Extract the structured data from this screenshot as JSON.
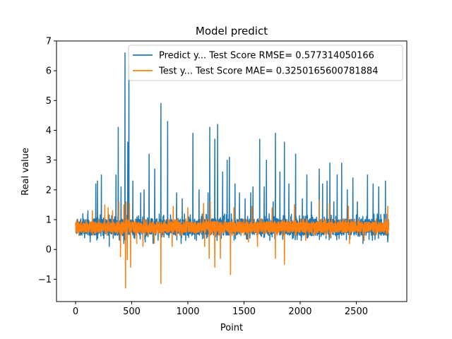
{
  "chart_data": {
    "type": "line",
    "title": "Model predict",
    "xlabel": "Point",
    "ylabel": "Real value",
    "xlim": [
      -170,
      2950
    ],
    "ylim": [
      -1.75,
      7.0
    ],
    "xticks": [
      0,
      500,
      1000,
      1500,
      2000,
      2500
    ],
    "yticks": [
      -1,
      0,
      1,
      2,
      3,
      4,
      5,
      6,
      7
    ],
    "grid": false,
    "legend_position": "top-right",
    "n_points": 2790,
    "series": [
      {
        "name": "Predict y... Test Score RMSE= 0.577314050166",
        "color": "#1f77b4",
        "baseline": 0.75,
        "noise_amplitude": 0.28,
        "spikes": [
          [
            65,
            1.2
          ],
          [
            110,
            1.3
          ],
          [
            180,
            2.2
          ],
          [
            195,
            2.3
          ],
          [
            230,
            2.5
          ],
          [
            300,
            1.9
          ],
          [
            360,
            2.5
          ],
          [
            380,
            4.1
          ],
          [
            405,
            2.1
          ],
          [
            440,
            6.6
          ],
          [
            465,
            3.6
          ],
          [
            475,
            6.2
          ],
          [
            510,
            2.3
          ],
          [
            580,
            1.9
          ],
          [
            610,
            2.0
          ],
          [
            655,
            3.2
          ],
          [
            705,
            2.7
          ],
          [
            760,
            4.9
          ],
          [
            820,
            4.3
          ],
          [
            900,
            1.9
          ],
          [
            950,
            1.7
          ],
          [
            1045,
            3.9
          ],
          [
            1100,
            2.0
          ],
          [
            1140,
            1.3
          ],
          [
            1180,
            1.9
          ],
          [
            1195,
            4.1
          ],
          [
            1240,
            3.7
          ],
          [
            1265,
            4.2
          ],
          [
            1310,
            2.6
          ],
          [
            1350,
            3.0
          ],
          [
            1370,
            3.1
          ],
          [
            1420,
            2.2
          ],
          [
            1460,
            1.9
          ],
          [
            1510,
            1.7
          ],
          [
            1560,
            1.9
          ],
          [
            1580,
            2.1
          ],
          [
            1640,
            3.7
          ],
          [
            1680,
            2.1
          ],
          [
            1700,
            3.0
          ],
          [
            1760,
            1.6
          ],
          [
            1780,
            3.9
          ],
          [
            1820,
            2.6
          ],
          [
            1860,
            3.6
          ],
          [
            1900,
            2.2
          ],
          [
            1960,
            3.2
          ],
          [
            2020,
            1.7
          ],
          [
            2060,
            2.5
          ],
          [
            2100,
            1.6
          ],
          [
            2170,
            2.7
          ],
          [
            2200,
            2.2
          ],
          [
            2240,
            2.3
          ],
          [
            2265,
            2.9
          ],
          [
            2300,
            1.6
          ],
          [
            2330,
            2.5
          ],
          [
            2370,
            2.9
          ],
          [
            2420,
            2.0
          ],
          [
            2470,
            2.4
          ],
          [
            2510,
            1.6
          ],
          [
            2560,
            3.2
          ],
          [
            2600,
            2.5
          ],
          [
            2650,
            2.2
          ],
          [
            2700,
            2.1
          ],
          [
            2760,
            2.3
          ]
        ],
        "dips": [
          [
            130,
            0.25
          ],
          [
            300,
            0.1
          ],
          [
            430,
            0.2
          ],
          [
            620,
            0.25
          ],
          [
            690,
            0.2
          ],
          [
            940,
            0.2
          ],
          [
            1260,
            0.3
          ],
          [
            1530,
            0.35
          ],
          [
            1730,
            0.3
          ],
          [
            2010,
            0.3
          ],
          [
            2560,
            0.2
          ],
          [
            2780,
            0.25
          ]
        ]
      },
      {
        "name": "Test y... Test Score MAE= 0.3250165600781884",
        "color": "#ff7f0e",
        "baseline": 0.75,
        "noise_amplitude": 0.18,
        "spikes": [
          [
            150,
            1.3
          ],
          [
            260,
            1.5
          ],
          [
            290,
            1.4
          ],
          [
            330,
            1.3
          ],
          [
            385,
            1.6
          ],
          [
            430,
            1.5
          ],
          [
            450,
            1.6
          ],
          [
            480,
            1.55
          ],
          [
            600,
            1.45
          ],
          [
            760,
            1.4
          ],
          [
            870,
            1.45
          ],
          [
            1000,
            1.4
          ],
          [
            1140,
            1.55
          ],
          [
            1200,
            1.6
          ],
          [
            1410,
            1.4
          ],
          [
            1570,
            1.45
          ],
          [
            1750,
            1.4
          ],
          [
            1950,
            1.5
          ],
          [
            2170,
            1.65
          ],
          [
            2260,
            1.55
          ],
          [
            2430,
            1.45
          ],
          [
            2780,
            1.45
          ]
        ],
        "dips": [
          [
            400,
            -0.25
          ],
          [
            445,
            -1.3
          ],
          [
            460,
            -0.35
          ],
          [
            490,
            -0.6
          ],
          [
            545,
            0.2
          ],
          [
            600,
            0.1
          ],
          [
            700,
            0.2
          ],
          [
            760,
            -1.15
          ],
          [
            860,
            0.1
          ],
          [
            1150,
            0.1
          ],
          [
            1190,
            -0.3
          ],
          [
            1240,
            -0.6
          ],
          [
            1290,
            -0.3
          ],
          [
            1380,
            -0.85
          ],
          [
            1540,
            0.25
          ],
          [
            1620,
            0.1
          ],
          [
            1780,
            -0.3
          ],
          [
            1860,
            -0.5
          ],
          [
            2050,
            0.3
          ],
          [
            2270,
            0.4
          ],
          [
            2440,
            0.2
          ],
          [
            2570,
            0.3
          ]
        ]
      }
    ]
  }
}
